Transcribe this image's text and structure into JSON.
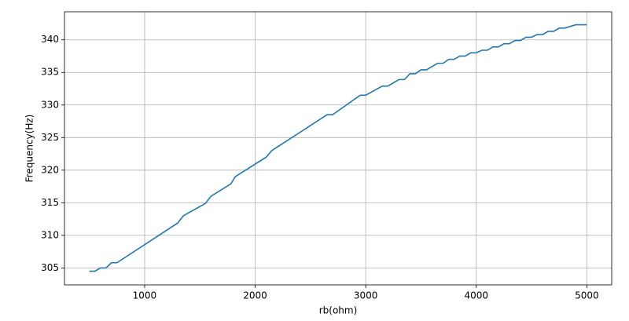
{
  "chart_data": {
    "type": "line",
    "x_label": "rb(ohm)",
    "y_label": "Frequency(Hz)",
    "x": [
      500,
      550,
      600,
      650,
      700,
      750,
      1300,
      1350,
      1550,
      1600,
      1780,
      1820,
      2100,
      2150,
      2650,
      2700,
      2950,
      3000,
      3150,
      3200,
      3300,
      3350,
      3400,
      3450,
      3500,
      3550,
      3650,
      3700,
      3750,
      3800,
      3850,
      3900,
      3950,
      4000,
      4050,
      4100,
      4150,
      4200,
      4250,
      4300,
      4350,
      4400,
      4450,
      4500,
      4550,
      4600,
      4650,
      4700,
      4750,
      4800,
      4900,
      5000
    ],
    "values": [
      304.5,
      304.5,
      305,
      305,
      305.8,
      305.8,
      311.9,
      313,
      314.9,
      316,
      317.9,
      319,
      322,
      323,
      328.5,
      328.5,
      331.5,
      331.5,
      332.9,
      332.9,
      333.9,
      333.9,
      334.8,
      334.8,
      335.4,
      335.4,
      336.4,
      336.4,
      337,
      337,
      337.5,
      337.5,
      338,
      338,
      338.4,
      338.4,
      338.9,
      338.9,
      339.4,
      339.4,
      339.9,
      339.9,
      340.4,
      340.4,
      340.8,
      340.8,
      341.3,
      341.3,
      341.8,
      341.8,
      342.3,
      342.3
    ],
    "color": "#1f77b4",
    "xlim": [
      275,
      5225
    ],
    "ylim": [
      302.4,
      344.3
    ],
    "xticks": [
      1000,
      2000,
      3000,
      4000,
      5000
    ],
    "yticks": [
      305,
      310,
      315,
      320,
      325,
      330,
      335,
      340
    ],
    "grid": true
  }
}
